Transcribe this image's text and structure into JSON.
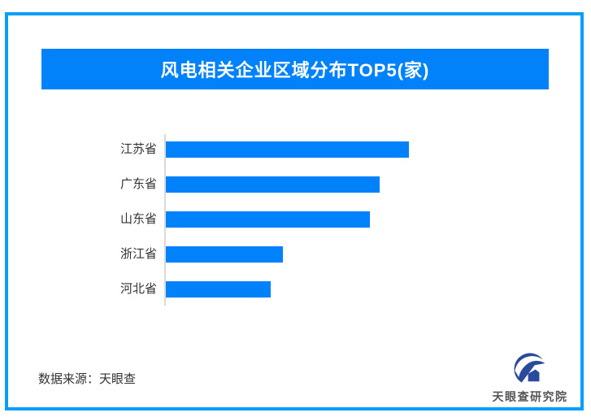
{
  "page": {
    "background": "#ffffff",
    "frame_color": "#099dfc"
  },
  "header": {
    "title": "风电相关企业区域分布TOP5(家)",
    "background": "#0182fb",
    "text_color": "#ffffff"
  },
  "chart_data": {
    "type": "bar",
    "orientation": "horizontal",
    "title": "风电相关企业区域分布TOP5(家)",
    "unit": "家",
    "categories": [
      "江苏省",
      "广东省",
      "山东省",
      "浙江省",
      "河北省"
    ],
    "values": [
      100,
      88,
      84,
      48,
      43
    ],
    "values_note": "bars carry no numeric labels in the image; values are relative bar lengths as % of the longest bar",
    "bar_color": "#0182fb",
    "axis_color": "#d9d9d9",
    "grid": false,
    "legend": false
  },
  "footer": {
    "source": "数据来源：天眼查",
    "logo_text": "天眼查研究院",
    "logo_color": "#2c4a9c"
  }
}
